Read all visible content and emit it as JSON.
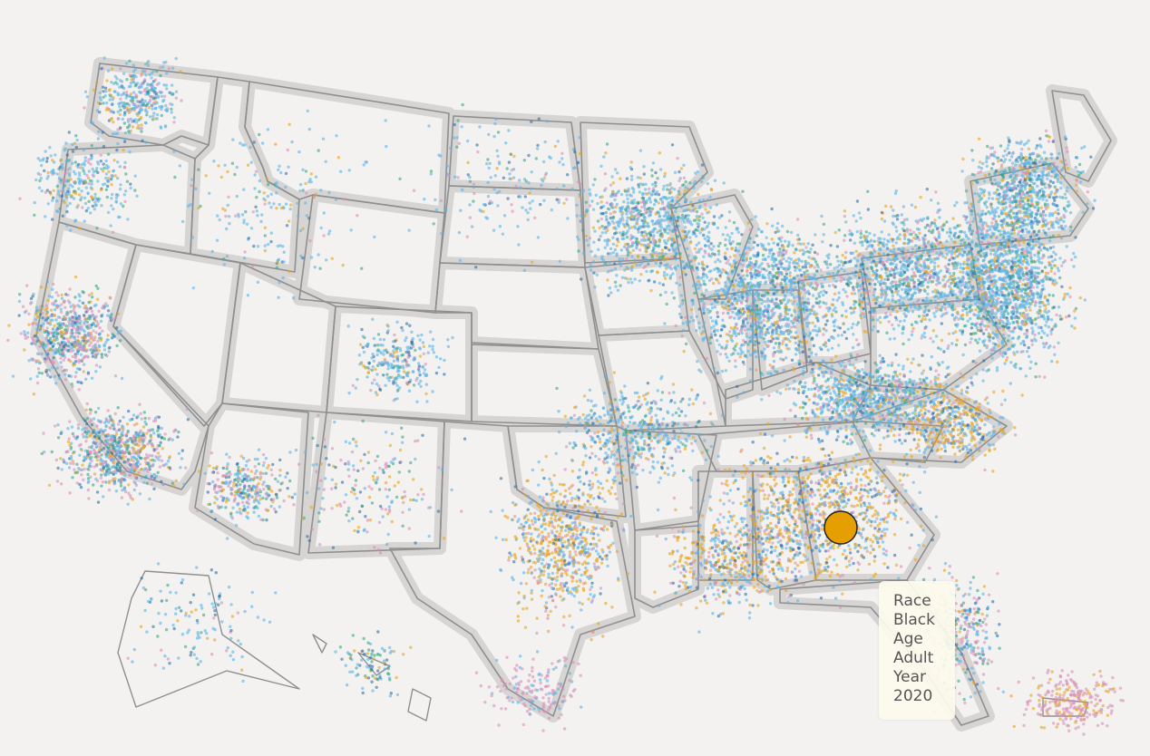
{
  "tooltip": {
    "race_label": "Race",
    "race_value": "Black",
    "age_label": "Age",
    "age_value": "Adult",
    "year_label": "Year",
    "year_value": "2020"
  },
  "colors": {
    "background": "#f3f2f1",
    "land": "#f3f2f1",
    "state_border": "#8f8f8f",
    "state_halo": "#d6d5d4",
    "dot_blue": "#5cb4e6",
    "dot_orange": "#e7a51d",
    "dot_pink": "#d98fb7",
    "dot_green": "#3aa784",
    "dot_dark": "#2f6fa8",
    "highlight_fill": "#e69f00",
    "tooltip_bg": "#fdfbec"
  },
  "legend_hidden": true
}
